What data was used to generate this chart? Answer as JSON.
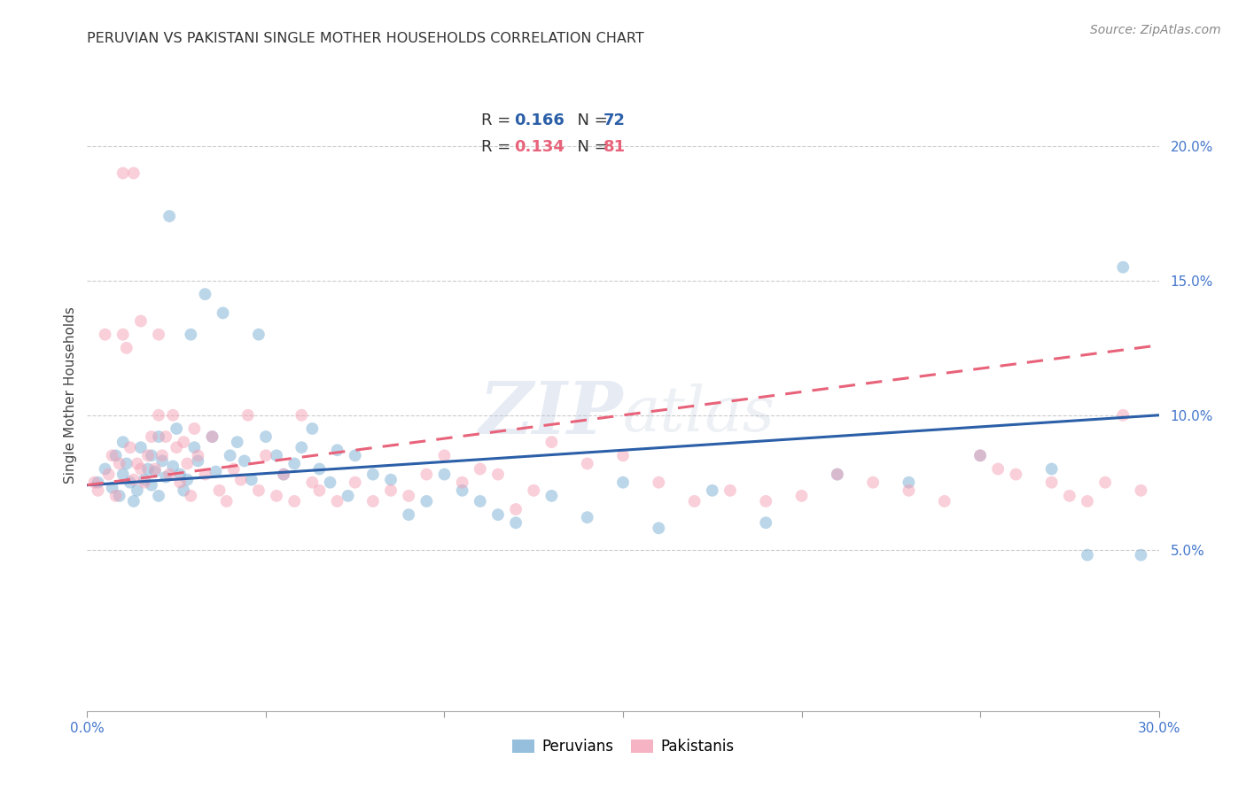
{
  "title": "PERUVIAN VS PAKISTANI SINGLE MOTHER HOUSEHOLDS CORRELATION CHART",
  "source": "Source: ZipAtlas.com",
  "ylabel": "Single Mother Households",
  "xlim": [
    0.0,
    0.3
  ],
  "ylim": [
    -0.01,
    0.225
  ],
  "peruvian_color": "#7BAFD4",
  "pakistani_color": "#F4A0B5",
  "peruvian_line_color": "#2B5FA8",
  "pakistani_line_color": "#E8637A",
  "background_color": "#FFFFFF",
  "grid_color": "#CCCCCC",
  "title_fontsize": 11.5,
  "source_fontsize": 10,
  "axis_label_fontsize": 11,
  "tick_fontsize": 11,
  "legend_fontsize": 13,
  "watermark_fontsize": 60,
  "marker_size": 100,
  "marker_alpha": 0.5,
  "line_width": 2.2,
  "peruvians_x": [
    0.003,
    0.005,
    0.007,
    0.008,
    0.009,
    0.01,
    0.01,
    0.011,
    0.012,
    0.013,
    0.014,
    0.015,
    0.016,
    0.017,
    0.018,
    0.018,
    0.019,
    0.02,
    0.02,
    0.021,
    0.022,
    0.023,
    0.024,
    0.025,
    0.026,
    0.027,
    0.028,
    0.029,
    0.03,
    0.031,
    0.033,
    0.035,
    0.036,
    0.038,
    0.04,
    0.042,
    0.044,
    0.046,
    0.048,
    0.05,
    0.053,
    0.055,
    0.058,
    0.06,
    0.063,
    0.065,
    0.068,
    0.07,
    0.073,
    0.075,
    0.08,
    0.085,
    0.09,
    0.095,
    0.1,
    0.105,
    0.11,
    0.115,
    0.12,
    0.13,
    0.14,
    0.15,
    0.16,
    0.175,
    0.19,
    0.21,
    0.23,
    0.25,
    0.27,
    0.28,
    0.29,
    0.295
  ],
  "peruvians_y": [
    0.075,
    0.08,
    0.073,
    0.085,
    0.07,
    0.09,
    0.078,
    0.082,
    0.075,
    0.068,
    0.072,
    0.088,
    0.076,
    0.08,
    0.074,
    0.085,
    0.079,
    0.092,
    0.07,
    0.083,
    0.077,
    0.174,
    0.081,
    0.095,
    0.078,
    0.072,
    0.076,
    0.13,
    0.088,
    0.083,
    0.145,
    0.092,
    0.079,
    0.138,
    0.085,
    0.09,
    0.083,
    0.076,
    0.13,
    0.092,
    0.085,
    0.078,
    0.082,
    0.088,
    0.095,
    0.08,
    0.075,
    0.087,
    0.07,
    0.085,
    0.078,
    0.076,
    0.063,
    0.068,
    0.078,
    0.072,
    0.068,
    0.063,
    0.06,
    0.07,
    0.062,
    0.075,
    0.058,
    0.072,
    0.06,
    0.078,
    0.075,
    0.085,
    0.08,
    0.048,
    0.155,
    0.048
  ],
  "pakistanis_x": [
    0.002,
    0.003,
    0.005,
    0.006,
    0.007,
    0.008,
    0.009,
    0.01,
    0.01,
    0.011,
    0.012,
    0.013,
    0.013,
    0.014,
    0.015,
    0.015,
    0.016,
    0.017,
    0.018,
    0.019,
    0.02,
    0.02,
    0.021,
    0.022,
    0.023,
    0.024,
    0.025,
    0.026,
    0.027,
    0.028,
    0.029,
    0.03,
    0.031,
    0.033,
    0.035,
    0.037,
    0.039,
    0.041,
    0.043,
    0.045,
    0.048,
    0.05,
    0.053,
    0.055,
    0.058,
    0.06,
    0.063,
    0.065,
    0.07,
    0.075,
    0.08,
    0.085,
    0.09,
    0.095,
    0.1,
    0.105,
    0.11,
    0.115,
    0.12,
    0.125,
    0.13,
    0.14,
    0.15,
    0.16,
    0.17,
    0.18,
    0.19,
    0.2,
    0.21,
    0.22,
    0.23,
    0.24,
    0.25,
    0.255,
    0.26,
    0.27,
    0.275,
    0.28,
    0.285,
    0.29,
    0.295
  ],
  "pakistanis_y": [
    0.075,
    0.072,
    0.13,
    0.078,
    0.085,
    0.07,
    0.082,
    0.19,
    0.13,
    0.125,
    0.088,
    0.076,
    0.19,
    0.082,
    0.135,
    0.08,
    0.075,
    0.085,
    0.092,
    0.08,
    0.1,
    0.13,
    0.085,
    0.092,
    0.078,
    0.1,
    0.088,
    0.075,
    0.09,
    0.082,
    0.07,
    0.095,
    0.085,
    0.078,
    0.092,
    0.072,
    0.068,
    0.08,
    0.076,
    0.1,
    0.072,
    0.085,
    0.07,
    0.078,
    0.068,
    0.1,
    0.075,
    0.072,
    0.068,
    0.075,
    0.068,
    0.072,
    0.07,
    0.078,
    0.085,
    0.075,
    0.08,
    0.078,
    0.065,
    0.072,
    0.09,
    0.082,
    0.085,
    0.075,
    0.068,
    0.072,
    0.068,
    0.07,
    0.078,
    0.075,
    0.072,
    0.068,
    0.085,
    0.08,
    0.078,
    0.075,
    0.07,
    0.068,
    0.075,
    0.1,
    0.072
  ],
  "peru_line_x0": 0.0,
  "peru_line_y0": 0.074,
  "peru_line_x1": 0.3,
  "peru_line_y1": 0.1,
  "pak_line_x0": 0.0,
  "pak_line_y0": 0.074,
  "pak_line_x1": 0.3,
  "pak_line_y1": 0.126
}
